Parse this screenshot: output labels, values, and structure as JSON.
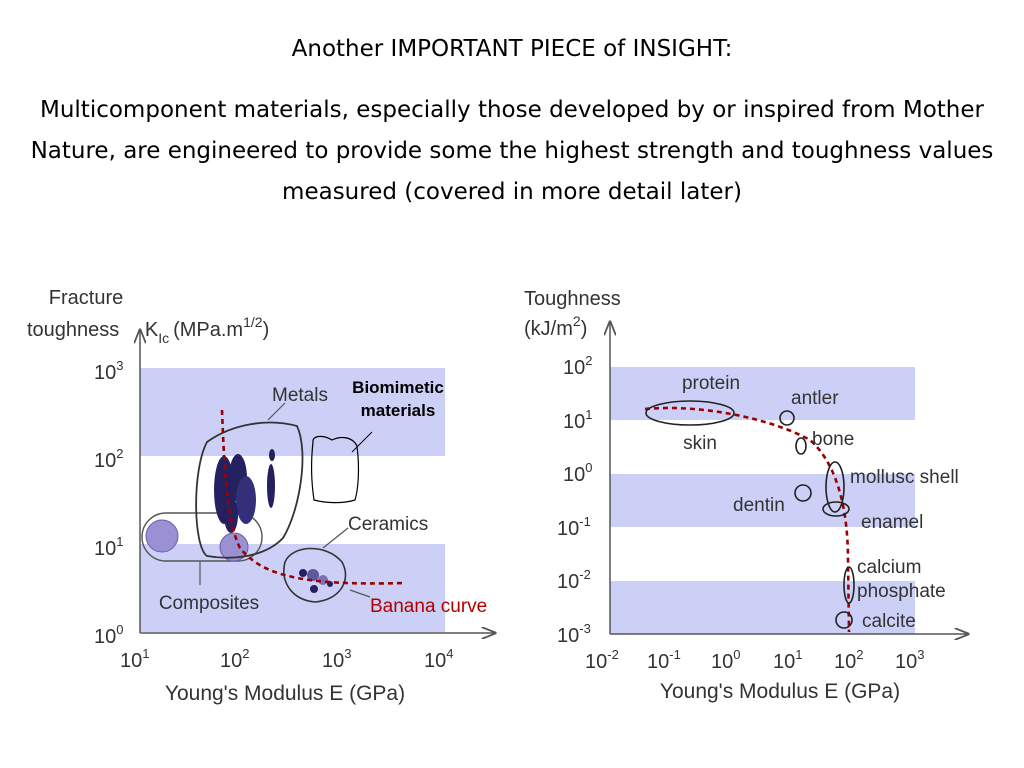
{
  "slide": {
    "title": "Another IMPORTANT PIECE of INSIGHT:",
    "body": "Multicomponent materials, especially those developed by or inspired from Mother Nature, are engineered to provide some the highest strength and toughness values measured (covered in more detail later)"
  },
  "left_chart": {
    "y_label_line1": "Fracture",
    "y_label_line2": "toughness",
    "y_symbol_K": "K",
    "y_symbol_sub": "Ic",
    "y_units_pre": "(MPa.m",
    "y_units_sup": "1/2",
    "y_units_post": ")",
    "y_ticks": [
      {
        "base": "10",
        "exp": "3"
      },
      {
        "base": "10",
        "exp": "2"
      },
      {
        "base": "10",
        "exp": "1"
      },
      {
        "base": "10",
        "exp": "0"
      }
    ],
    "x_ticks": [
      {
        "base": "10",
        "exp": "1"
      },
      {
        "base": "10",
        "exp": "2"
      },
      {
        "base": "10",
        "exp": "3"
      },
      {
        "base": "10",
        "exp": "4"
      }
    ],
    "x_label": "Young's Modulus E (GPa)",
    "labels": {
      "metals": "Metals",
      "ceramics": "Ceramics",
      "composites": "Composites",
      "banana": "Banana curve",
      "biomimetic_line1": "Biomimetic",
      "biomimetic_line2": "materials"
    },
    "colors": {
      "band": "#ccd0f6",
      "metal": "#252060",
      "composite": "#9b90d2",
      "banana": "#9a0000"
    }
  },
  "right_chart": {
    "y_label_line1": "Toughness",
    "y_units_pre": "(kJ/m",
    "y_units_sup": "2",
    "y_units_post": ")",
    "y_ticks": [
      {
        "base": "10",
        "exp": "2"
      },
      {
        "base": "10",
        "exp": "1"
      },
      {
        "base": "10",
        "exp": "0"
      },
      {
        "base": "10",
        "exp": "-1"
      },
      {
        "base": "10",
        "exp": "-2"
      },
      {
        "base": "10",
        "exp": "-3"
      }
    ],
    "x_ticks": [
      {
        "base": "10",
        "exp": "-2"
      },
      {
        "base": "10",
        "exp": "-1"
      },
      {
        "base": "10",
        "exp": "0"
      },
      {
        "base": "10",
        "exp": "1"
      },
      {
        "base": "10",
        "exp": "2"
      },
      {
        "base": "10",
        "exp": "3"
      }
    ],
    "x_label": "Young's Modulus E (GPa)",
    "labels": {
      "protein": "protein",
      "skin": "skin",
      "antler": "antler",
      "bone": "bone",
      "mollusc": "mollusc shell",
      "dentin": "dentin",
      "enamel": "enamel",
      "calcium": "calcium",
      "phosphate": "phosphate",
      "calcite": "calcite"
    }
  }
}
